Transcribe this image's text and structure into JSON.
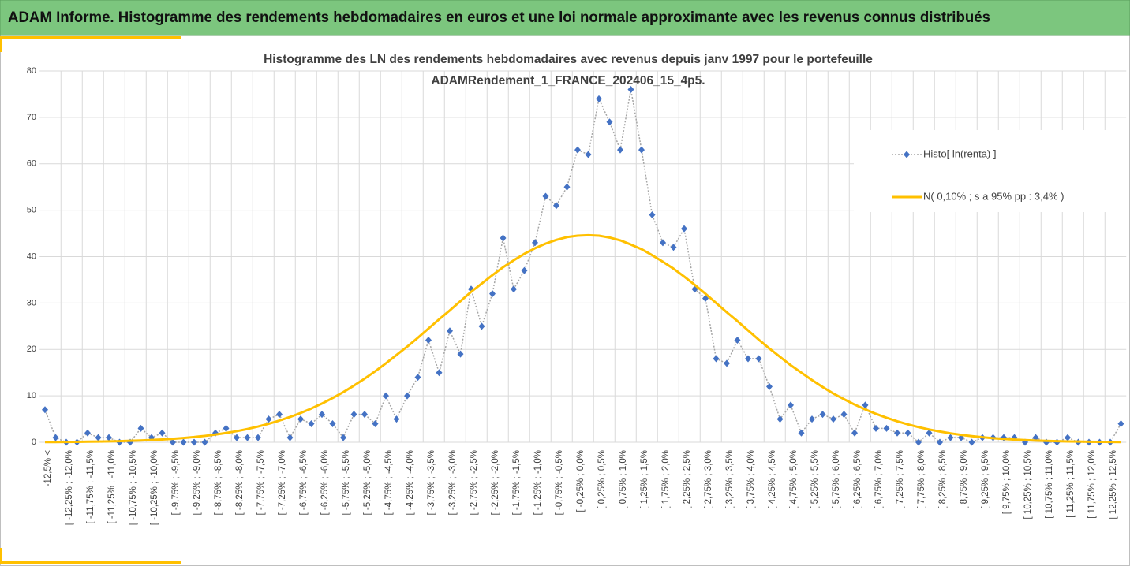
{
  "header": {
    "title": "ADAM Informe. Histogramme des rendements hebdomadaires en euros et une loi normale approximante avec les revenus connus distribués"
  },
  "chart_data": {
    "type": "line",
    "title": "Histogramme des LN des rendements hebdomadaires avec revenus depuis janv 1997 pour le portefeuille ADAMRendement_1_FRANCE_202406_15_4p5.",
    "categories": [
      "-12,5% <",
      null,
      "[ -12,25% ; -12,0%",
      null,
      "[ -11,75% ; -11,5%",
      null,
      "[ -11,25% ; -11,0%",
      null,
      "[ -10,75% ; -10,5%",
      null,
      "[ -10,25% ; -10,0%",
      null,
      "[ -9,75% ; -9,5%",
      null,
      "[ -9,25% ; -9,0%",
      null,
      "[ -8,75% ; -8,5%",
      null,
      "[ -8,25% ; -8,0%",
      null,
      "[ -7,75% ; -7,5%",
      null,
      "[ -7,25% ; -7,0%",
      null,
      "[ -6,75% ; -6,5%",
      null,
      "[ -6,25% ; -6,0%",
      null,
      "[ -5,75% ; -5,5%",
      null,
      "[ -5,25% ; -5,0%",
      null,
      "[ -4,75% ; -4,5%",
      null,
      "[ -4,25% ; -4,0%",
      null,
      "[ -3,75% ; -3,5%",
      null,
      "[ -3,25% ; -3,0%",
      null,
      "[ -2,75% ; -2,5%",
      null,
      "[ -2,25% ; -2,0%",
      null,
      "[ -1,75% ; -1,5%",
      null,
      "[ -1,25% ; -1,0%",
      null,
      "[ -0,75% ; -0,5%",
      null,
      "[ -0,25% ; 0,0%",
      null,
      "[ 0,25% ; 0,5%",
      null,
      "[ 0,75% ; 1,0%",
      null,
      "[ 1,25% ; 1,5%",
      null,
      "[ 1,75% ; 2,0%",
      null,
      "[ 2,25% ; 2,5%",
      null,
      "[ 2,75% ; 3,0%",
      null,
      "[ 3,25% ; 3,5%",
      null,
      "[ 3,75% ; 4,0%",
      null,
      "[ 4,25% ; 4,5%",
      null,
      "[ 4,75% ; 5,0%",
      null,
      "[ 5,25% ; 5,5%",
      null,
      "[ 5,75% ; 6,0%",
      null,
      "[ 6,25% ; 6,5%",
      null,
      "[ 6,75% ; 7,0%",
      null,
      "[ 7,25% ; 7,5%",
      null,
      "[ 7,75% ; 8,0%",
      null,
      "[ 8,25% ; 8,5%",
      null,
      "[ 8,75% ; 9,0%",
      null,
      "[ 9,25% ; 9,5%",
      null,
      "[ 9,75% ; 10,0%",
      null,
      "[ 10,25% ; 10,5%",
      null,
      "[ 10,75% ; 11,0%",
      null,
      "[ 11,25% ; 11,5%",
      null,
      "[ 11,75% ; 12,0%",
      null,
      "[ 12,25% ; 12,5%",
      null
    ],
    "series": [
      {
        "name": "Histo[ ln(renta) ]",
        "color": "#4472c4",
        "line_color": "#a6a6a6",
        "line_style": "dotted",
        "marker": "diamond",
        "values": [
          7,
          1,
          0,
          0,
          2,
          1,
          1,
          0,
          0,
          3,
          1,
          2,
          0,
          0,
          0,
          0,
          2,
          3,
          1,
          1,
          1,
          5,
          6,
          1,
          5,
          4,
          6,
          4,
          1,
          6,
          6,
          4,
          10,
          5,
          10,
          14,
          22,
          15,
          24,
          19,
          33,
          25,
          32,
          44,
          33,
          37,
          43,
          53,
          51,
          55,
          63,
          62,
          74,
          69,
          63,
          76,
          63,
          49,
          43,
          42,
          46,
          33,
          31,
          18,
          17,
          22,
          18,
          18,
          12,
          5,
          8,
          2,
          5,
          6,
          5,
          6,
          2,
          8,
          3,
          3,
          2,
          2,
          0,
          2,
          0,
          1,
          1,
          0,
          1,
          1,
          1,
          1,
          0,
          1,
          0,
          0,
          1,
          0,
          0,
          0,
          0,
          4
        ]
      },
      {
        "name": "N( 0,10% ; s a 95% pp : 3,4% )",
        "color": "#ffc000",
        "line_style": "solid",
        "values": [
          0.05,
          0.05,
          0.07,
          0.09,
          0.12,
          0.15,
          0.19,
          0.24,
          0.31,
          0.39,
          0.48,
          0.6,
          0.75,
          0.92,
          1.12,
          1.37,
          1.66,
          2,
          2.39,
          2.85,
          3.38,
          3.98,
          4.67,
          5.44,
          6.31,
          7.27,
          8.34,
          9.52,
          10.8,
          12.2,
          13.7,
          15.3,
          17,
          18.8,
          20.6,
          22.5,
          24.5,
          26.5,
          28.4,
          30.4,
          32.4,
          34.2,
          36,
          37.7,
          39.2,
          40.6,
          41.8,
          42.8,
          43.6,
          44.2,
          44.5,
          44.6,
          44.5,
          44.1,
          43.5,
          42.6,
          41.6,
          40.3,
          38.9,
          37.4,
          35.7,
          33.9,
          32,
          30,
          28,
          26.1,
          24.1,
          22.1,
          20.2,
          18.4,
          16.6,
          15,
          13.4,
          11.9,
          10.5,
          9.28,
          8.12,
          7.07,
          6.12,
          5.28,
          4.52,
          3.85,
          3.26,
          2.75,
          2.31,
          1.92,
          1.6,
          1.32,
          1.08,
          0.88,
          0.72,
          0.58,
          0.46,
          0.37,
          0.29,
          0.23,
          0.18,
          0.14,
          0.11,
          0.09,
          0.07,
          0.05
        ]
      }
    ],
    "ylim": [
      0,
      80
    ],
    "yticks": [
      0,
      10,
      20,
      30,
      40,
      50,
      60,
      70,
      80
    ],
    "grid": true,
    "legend": "right"
  }
}
